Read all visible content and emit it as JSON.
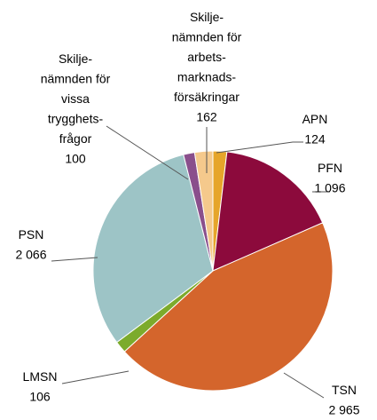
{
  "chart_data": {
    "type": "pie",
    "categories": [
      [
        "APN"
      ],
      [
        "PFN"
      ],
      [
        "TSN"
      ],
      [
        "LMSN"
      ],
      [
        "PSN"
      ],
      [
        "Skilje-",
        "nämnden för",
        "vissa",
        "trygghets-",
        "frågor"
      ],
      [
        "Skilje-",
        "nämnden för",
        "arbets-",
        "marknads-",
        "försäkringar"
      ]
    ],
    "values": [
      124,
      1096,
      2965,
      106,
      2066,
      100,
      162
    ],
    "value_labels": [
      "124",
      "1 096",
      "2 965",
      "106",
      "2 066",
      "100",
      "162"
    ],
    "colors": [
      "#e6a52a",
      "#8c0a3c",
      "#d4652c",
      "#7cab2c",
      "#9dc4c6",
      "#8a4f8c",
      "#f5c98c"
    ]
  }
}
